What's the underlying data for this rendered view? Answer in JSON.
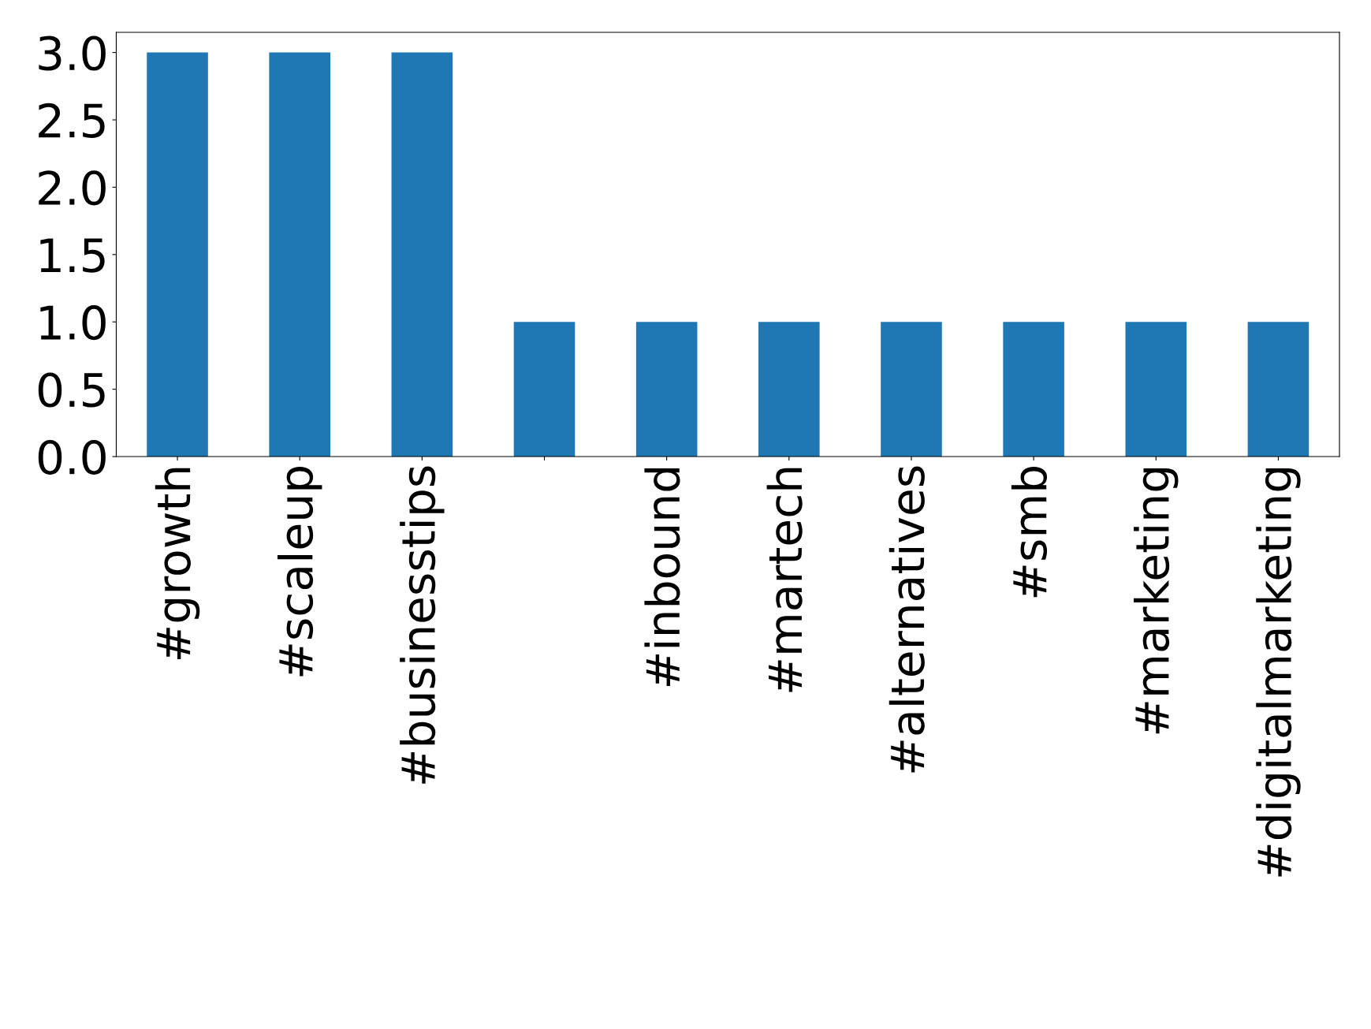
{
  "chart_data": {
    "type": "bar",
    "categories": [
      "#growth",
      "#scaleup",
      "#businesstips",
      null,
      "#inbound",
      "#martech",
      "#alternatives",
      "#smb",
      "#marketing",
      "#digitalmarketing"
    ],
    "values": [
      3,
      3,
      3,
      1,
      1,
      1,
      1,
      1,
      1,
      1
    ],
    "color": "#1f77b4",
    "ylim": [
      0,
      3.15
    ],
    "yticks": [
      {
        "value": 0,
        "label": "0.0"
      },
      {
        "value": 0.5,
        "label": "0.5"
      },
      {
        "value": 1,
        "label": "1.0"
      },
      {
        "value": 1.5,
        "label": "1.5"
      },
      {
        "value": 2,
        "label": "2.0"
      },
      {
        "value": 2.5,
        "label": "2.5"
      },
      {
        "value": 3,
        "label": "3.0"
      }
    ],
    "grid": false
  }
}
